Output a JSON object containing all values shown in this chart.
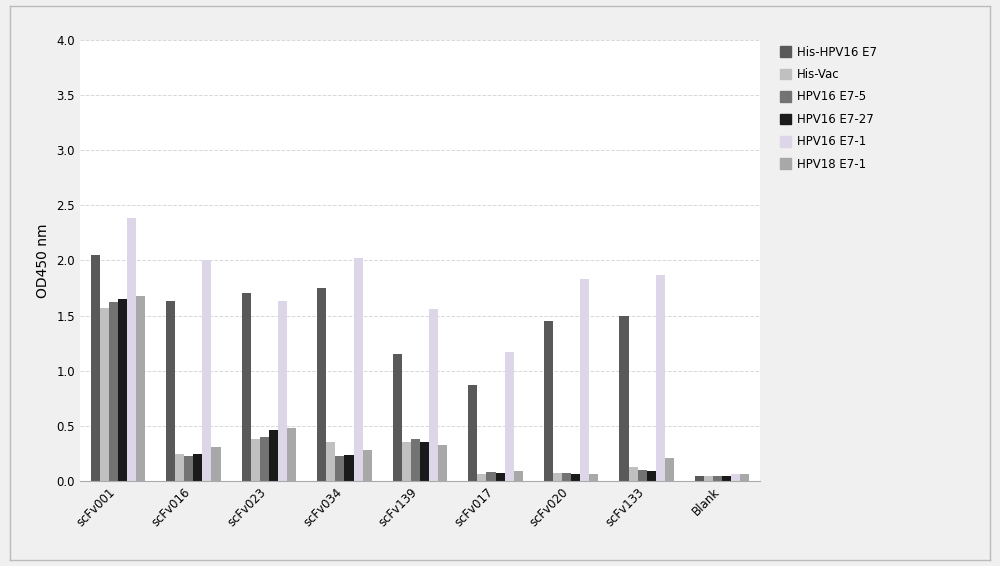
{
  "categories": [
    "scFv001",
    "scFv016",
    "scFv023",
    "scFv034",
    "scFv139",
    "scFv017",
    "scFv020",
    "scFv133",
    "Blank"
  ],
  "series": [
    {
      "label": "His-HPV16 E7",
      "color": "#595959",
      "values": [
        2.05,
        1.63,
        1.7,
        1.75,
        1.15,
        0.87,
        1.45,
        1.5,
        0.05
      ]
    },
    {
      "label": "His-Vac",
      "color": "#c0c0c0",
      "values": [
        1.57,
        0.25,
        0.38,
        0.35,
        0.35,
        0.06,
        0.07,
        0.13,
        0.05
      ]
    },
    {
      "label": "HPV16 E7-5",
      "color": "#737373",
      "values": [
        1.62,
        0.23,
        0.4,
        0.23,
        0.38,
        0.08,
        0.07,
        0.1,
        0.05
      ]
    },
    {
      "label": "HPV16 E7-27",
      "color": "#1a1a1a",
      "values": [
        1.65,
        0.25,
        0.46,
        0.24,
        0.35,
        0.07,
        0.06,
        0.09,
        0.05
      ]
    },
    {
      "label": "HPV16 E7-1",
      "color": "#dcd6e8",
      "values": [
        2.38,
        2.0,
        1.63,
        2.02,
        1.56,
        1.17,
        1.83,
        1.87,
        0.06
      ]
    },
    {
      "label": "HPV18 E7-1",
      "color": "#a8a8a8",
      "values": [
        1.68,
        0.31,
        0.48,
        0.28,
        0.33,
        0.09,
        0.06,
        0.21,
        0.06
      ]
    }
  ],
  "ylabel": "OD450 nm",
  "ylim": [
    0.0,
    4.0
  ],
  "yticks": [
    0.0,
    0.5,
    1.0,
    1.5,
    2.0,
    2.5,
    3.0,
    3.5,
    4.0
  ],
  "background_color": "#ffffff",
  "figure_bg": "#f0f0f0",
  "grid_color": "#d8d8d8",
  "bar_width": 0.12,
  "legend_fontsize": 8.5,
  "tick_fontsize": 8.5,
  "ylabel_fontsize": 10
}
